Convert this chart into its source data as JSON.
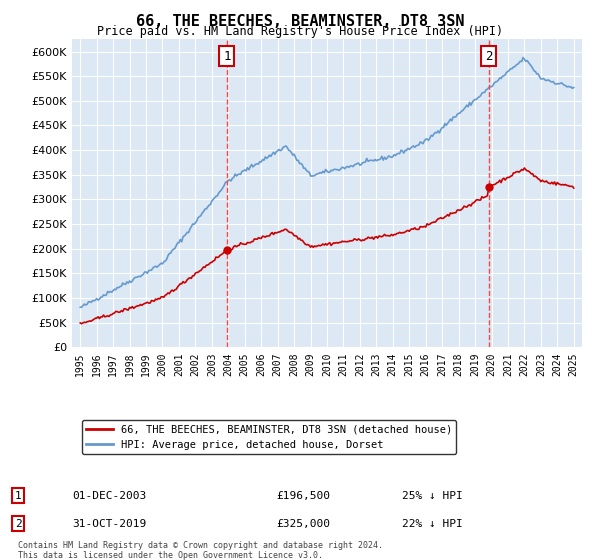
{
  "title": "66, THE BEECHES, BEAMINSTER, DT8 3SN",
  "subtitle": "Price paid vs. HM Land Registry's House Price Index (HPI)",
  "background_color": "#dce9f5",
  "plot_bg_color": "#dce9f5",
  "ylim": [
    0,
    625000
  ],
  "yticks": [
    0,
    50000,
    100000,
    150000,
    200000,
    250000,
    300000,
    350000,
    400000,
    450000,
    500000,
    550000,
    600000
  ],
  "xlabel_years": [
    "1995",
    "1996",
    "1997",
    "1998",
    "1999",
    "2000",
    "2001",
    "2002",
    "2003",
    "2004",
    "2005",
    "2006",
    "2007",
    "2008",
    "2009",
    "2010",
    "2011",
    "2012",
    "2013",
    "2014",
    "2015",
    "2016",
    "2017",
    "2018",
    "2019",
    "2020",
    "2021",
    "2022",
    "2023",
    "2024",
    "2025"
  ],
  "purchase1_year": 2003.92,
  "purchase1_price": 196500,
  "purchase1_label": "1",
  "purchase1_date": "01-DEC-2003",
  "purchase1_hpi_diff": "25% ↓ HPI",
  "purchase2_year": 2019.83,
  "purchase2_price": 325000,
  "purchase2_label": "2",
  "purchase2_date": "31-OCT-2019",
  "purchase2_hpi_diff": "22% ↓ HPI",
  "red_line_color": "#cc0000",
  "blue_line_color": "#6699cc",
  "vline_color": "#ff4444",
  "legend_label1": "66, THE BEECHES, BEAMINSTER, DT8 3SN (detached house)",
  "legend_label2": "HPI: Average price, detached house, Dorset",
  "footnote1": "Contains HM Land Registry data © Crown copyright and database right 2024.",
  "footnote2": "This data is licensed under the Open Government Licence v3.0."
}
